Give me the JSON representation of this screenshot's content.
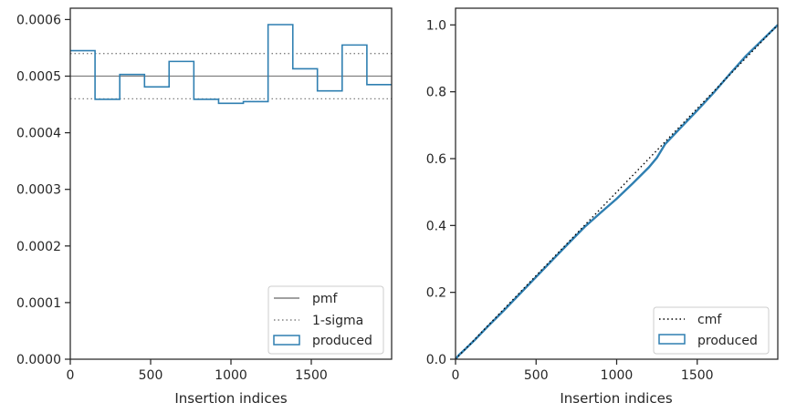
{
  "chart_data": [
    {
      "type": "step",
      "xlabel": "Insertion indices",
      "ylabel": "",
      "xlim": [
        0,
        2000
      ],
      "ylim": [
        0,
        0.00062
      ],
      "xticks": [
        0,
        500,
        1000,
        1500
      ],
      "yticks": [
        0.0,
        0.0001,
        0.0002,
        0.0003,
        0.0004,
        0.0005,
        0.0006
      ],
      "ytick_labels": [
        "0.0000",
        "0.0001",
        "0.0002",
        "0.0003",
        "0.0004",
        "0.0005",
        "0.0006"
      ],
      "grid": false,
      "legend_position": "lower right",
      "hlines": [
        {
          "name": "pmf",
          "y": 0.0005,
          "style": "solid",
          "color": "#808080"
        },
        {
          "name": "1-sigma",
          "y": 0.00054,
          "style": "dotted",
          "color": "#808080"
        },
        {
          "name": "1-sigma",
          "y": 0.00046,
          "style": "dotted",
          "color": "#808080"
        }
      ],
      "histogram": {
        "name": "produced",
        "color": "#2f7fb1",
        "bin_edges": [
          0,
          154,
          308,
          462,
          615,
          769,
          923,
          1077,
          1231,
          1385,
          1538,
          1692,
          1846,
          2000
        ],
        "values": [
          0.000545,
          0.000459,
          0.000503,
          0.000481,
          0.000526,
          0.000459,
          0.000452,
          0.000455,
          0.000591,
          0.000513,
          0.000474,
          0.000555,
          0.000485
        ]
      },
      "legend": [
        {
          "label": "pmf",
          "kind": "solid-line",
          "color": "#808080"
        },
        {
          "label": "1-sigma",
          "kind": "dotted-line",
          "color": "#808080"
        },
        {
          "label": "produced",
          "kind": "box",
          "color": "#2f7fb1"
        }
      ]
    },
    {
      "type": "line",
      "xlabel": "Insertion indices",
      "ylabel": "",
      "xlim": [
        0,
        2000
      ],
      "ylim": [
        0,
        1.05
      ],
      "xticks": [
        0,
        500,
        1000,
        1500
      ],
      "yticks": [
        0.0,
        0.2,
        0.4,
        0.6,
        0.8,
        1.0
      ],
      "ytick_labels": [
        "0.0",
        "0.2",
        "0.4",
        "0.6",
        "0.8",
        "1.0"
      ],
      "grid": false,
      "legend_position": "lower right",
      "series": [
        {
          "name": "cmf",
          "style": "dotted",
          "color": "#000000",
          "x": [
            0,
            2000
          ],
          "y": [
            0,
            1
          ]
        },
        {
          "name": "produced",
          "style": "solid",
          "color": "#2f7fb1",
          "x": [
            0,
            20,
            60,
            120,
            200,
            300,
            400,
            500,
            600,
            700,
            800,
            900,
            1000,
            1100,
            1200,
            1250,
            1300,
            1400,
            1500,
            1600,
            1700,
            1800,
            1900,
            2000
          ],
          "y": [
            0,
            0.012,
            0.03,
            0.058,
            0.098,
            0.146,
            0.196,
            0.246,
            0.296,
            0.346,
            0.395,
            0.438,
            0.48,
            0.526,
            0.574,
            0.603,
            0.643,
            0.694,
            0.744,
            0.796,
            0.852,
            0.906,
            0.953,
            1.0
          ]
        }
      ],
      "legend": [
        {
          "label": "cmf",
          "kind": "dotted-line",
          "color": "#000000"
        },
        {
          "label": "produced",
          "kind": "box",
          "color": "#2f7fb1"
        }
      ]
    }
  ]
}
